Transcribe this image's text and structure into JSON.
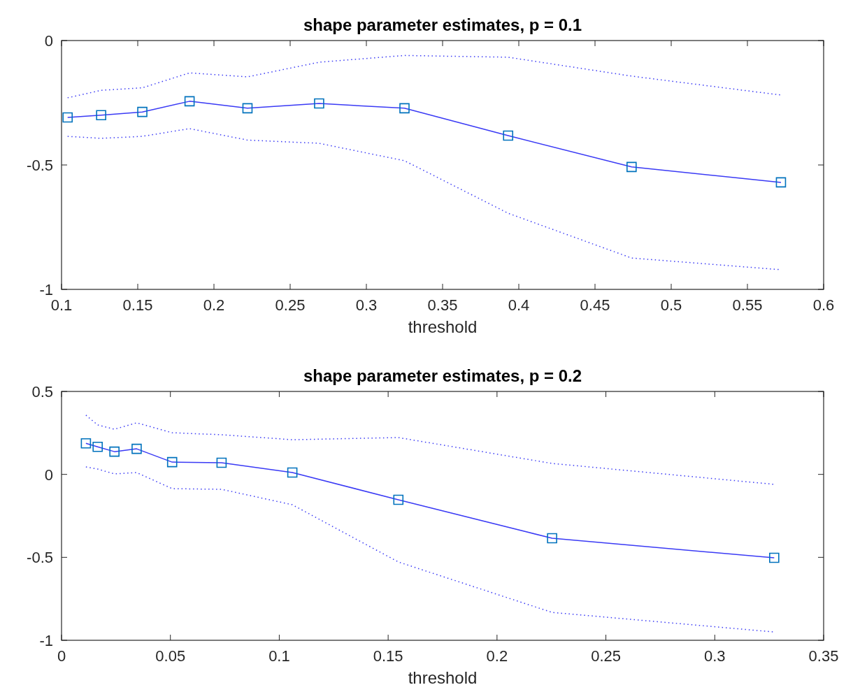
{
  "chart_data": [
    {
      "type": "line",
      "title": "shape parameter estimates, p = 0.1",
      "xlabel": "threshold",
      "xlim": [
        0.1,
        0.6
      ],
      "xticks": [
        0.1,
        0.15,
        0.2,
        0.25,
        0.3,
        0.35,
        0.4,
        0.45,
        0.5,
        0.55,
        0.6
      ],
      "ylim": [
        -1,
        0
      ],
      "yticks": [
        -1,
        -0.5,
        0
      ],
      "grid": false,
      "x": [
        0.104,
        0.126,
        0.153,
        0.184,
        0.222,
        0.269,
        0.325,
        0.393,
        0.474,
        0.572
      ],
      "series": [
        {
          "color": "#3a3af5",
          "marker": "square",
          "line_style": "solid",
          "values": [
            -0.309,
            -0.3,
            -0.287,
            -0.244,
            -0.272,
            -0.253,
            -0.272,
            -0.382,
            -0.508,
            -0.57
          ]
        },
        {
          "color": "#3a3af5",
          "marker": "none",
          "line_style": "dotted",
          "values": [
            -0.23,
            -0.2,
            -0.19,
            -0.13,
            -0.146,
            -0.087,
            -0.06,
            -0.067,
            -0.143,
            -0.219
          ]
        },
        {
          "color": "#3a3af5",
          "marker": "none",
          "line_style": "dotted",
          "values": [
            -0.385,
            -0.393,
            -0.385,
            -0.354,
            -0.4,
            -0.413,
            -0.483,
            -0.694,
            -0.874,
            -0.921
          ]
        }
      ]
    },
    {
      "type": "line",
      "title": "shape parameter estimates, p = 0.2",
      "xlabel": "threshold",
      "xlim": [
        0,
        0.35
      ],
      "xticks": [
        0,
        0.05,
        0.1,
        0.15,
        0.2,
        0.25,
        0.3,
        0.35
      ],
      "ylim": [
        -1,
        0.5
      ],
      "yticks": [
        -1,
        -0.5,
        0,
        0.5
      ],
      "grid": false,
      "x": [
        0.0112,
        0.0166,
        0.0243,
        0.0345,
        0.0508,
        0.0735,
        0.106,
        0.1547,
        0.2253,
        0.3273
      ],
      "series": [
        {
          "color": "#3a3af5",
          "marker": "square",
          "line_style": "solid",
          "values": [
            0.187,
            0.166,
            0.137,
            0.154,
            0.074,
            0.07,
            0.011,
            -0.153,
            -0.385,
            -0.503
          ]
        },
        {
          "color": "#3a3af5",
          "marker": "none",
          "line_style": "dotted",
          "values": [
            0.357,
            0.298,
            0.272,
            0.311,
            0.251,
            0.239,
            0.209,
            0.222,
            0.066,
            -0.06
          ]
        },
        {
          "color": "#3a3af5",
          "marker": "none",
          "line_style": "dotted",
          "values": [
            0.045,
            0.032,
            0.003,
            0.011,
            -0.086,
            -0.09,
            -0.183,
            -0.528,
            -0.832,
            -0.95
          ]
        }
      ]
    }
  ]
}
